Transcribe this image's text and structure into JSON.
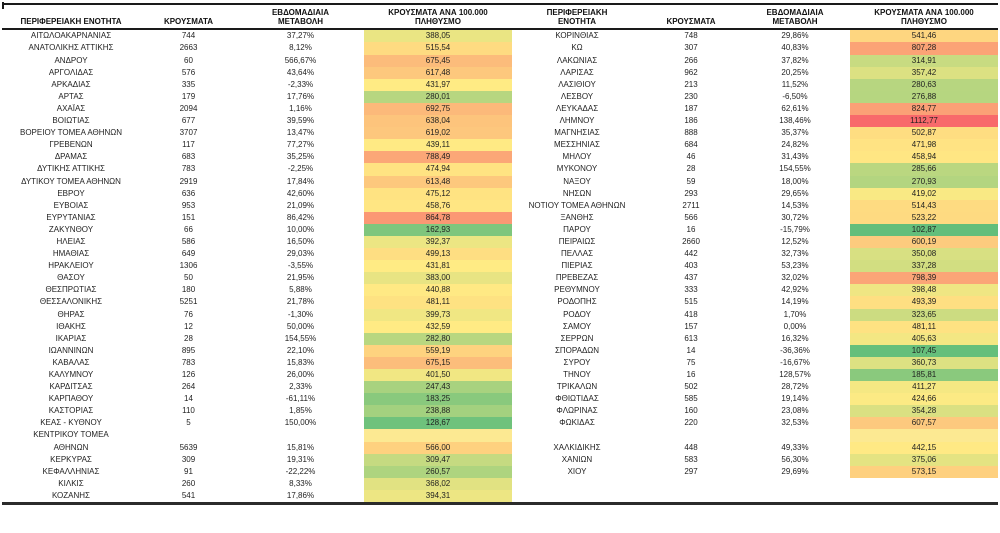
{
  "chart_data": {
    "type": "table",
    "columns": {
      "region": "ΠΕΡΙΦΕΡΕΙΑΚΗ ΕΝΟΤΗΤΑ",
      "cases": "ΚΡΟΥΣΜΑΤΑ",
      "weekly_change": "ΕΒΔΟΜΑΔΙΑΙΑ ΜΕΤΑΒΟΛΗ",
      "per_100k": "ΚΡΟΥΣΜΑΤΑ ΑΝΑ 100.000 ΠΛΗΘΥΣΜΟ"
    },
    "color_scale": {
      "applies_to": "per_100k",
      "min_color": "#63BE7B",
      "mid_color": "#FFEB84",
      "max_color": "#F8696B",
      "midpoint_rule": "50th-percentile",
      "empty_cell_fill": "#FCE992",
      "text_color": "#1f1f1f"
    },
    "tables": [
      {
        "rows": [
          [
            "ΑΙΤΩΛΟΑΚΑΡΝΑΝΙΑΣ",
            "744",
            "37,27%",
            "388,05"
          ],
          [
            "ΑΝΑΤΟΛΙΚΗΣ ΑΤΤΙΚΗΣ",
            "2663",
            "8,12%",
            "515,54"
          ],
          [
            "ΑΝΔΡΟΥ",
            "60",
            "566,67%",
            "675,45"
          ],
          [
            "ΑΡΓΟΛΙΔΑΣ",
            "576",
            "43,64%",
            "617,48"
          ],
          [
            "ΑΡΚΑΔΙΑΣ",
            "335",
            "-2,33%",
            "431,97"
          ],
          [
            "ΑΡΤΑΣ",
            "179",
            "17,76%",
            "280,01"
          ],
          [
            "ΑΧΑΪΑΣ",
            "2094",
            "1,16%",
            "692,75"
          ],
          [
            "ΒΟΙΩΤΙΑΣ",
            "677",
            "39,59%",
            "638,04"
          ],
          [
            "ΒΟΡΕΙΟΥ ΤΟΜΕΑ ΑΘΗΝΩΝ",
            "3707",
            "13,47%",
            "619,02"
          ],
          [
            "ΓΡΕΒΕΝΩΝ",
            "117",
            "77,27%",
            "439,11"
          ],
          [
            "ΔΡΑΜΑΣ",
            "683",
            "35,25%",
            "788,49"
          ],
          [
            "ΔΥΤΙΚΗΣ ΑΤΤΙΚΗΣ",
            "783",
            "-2,25%",
            "474,94"
          ],
          [
            "ΔΥΤΙΚΟΥ ΤΟΜΕΑ ΑΘΗΝΩΝ",
            "2919",
            "17,84%",
            "613,48"
          ],
          [
            "ΕΒΡΟΥ",
            "636",
            "42,60%",
            "475,12"
          ],
          [
            "ΕΥΒΟΙΑΣ",
            "953",
            "21,09%",
            "458,76"
          ],
          [
            "ΕΥΡΥΤΑΝΙΑΣ",
            "151",
            "86,42%",
            "864,78"
          ],
          [
            "ΖΑΚΥΝΘΟΥ",
            "66",
            "10,00%",
            "162,93"
          ],
          [
            "ΗΛΕΙΑΣ",
            "586",
            "16,50%",
            "392,37"
          ],
          [
            "ΗΜΑΘΙΑΣ",
            "649",
            "29,03%",
            "499,13"
          ],
          [
            "ΗΡΑΚΛΕΙΟΥ",
            "1306",
            "-3,55%",
            "431,81"
          ],
          [
            "ΘΑΣΟΥ",
            "50",
            "21,95%",
            "383,00"
          ],
          [
            "ΘΕΣΠΡΩΤΙΑΣ",
            "180",
            "5,88%",
            "440,88"
          ],
          [
            "ΘΕΣΣΑΛΟΝΙΚΗΣ",
            "5251",
            "21,78%",
            "481,11"
          ],
          [
            "ΘΗΡΑΣ",
            "76",
            "-1,30%",
            "399,73"
          ],
          [
            "ΙΘΑΚΗΣ",
            "12",
            "50,00%",
            "432,59"
          ],
          [
            "ΙΚΑΡΙΑΣ",
            "28",
            "154,55%",
            "282,80"
          ],
          [
            "ΙΩΑΝΝΙΝΩΝ",
            "895",
            "22,10%",
            "559,19"
          ],
          [
            "ΚΑΒΑΛΑΣ",
            "783",
            "15,83%",
            "675,15"
          ],
          [
            "ΚΑΛΥΜΝΟΥ",
            "126",
            "26,00%",
            "401,50"
          ],
          [
            "ΚΑΡΔΙΤΣΑΣ",
            "264",
            "2,33%",
            "247,43"
          ],
          [
            "ΚΑΡΠΑΘΟΥ",
            "14",
            "-61,11%",
            "183,25"
          ],
          [
            "ΚΑΣΤΟΡΙΑΣ",
            "110",
            "1,85%",
            "238,88"
          ],
          [
            "ΚΕΑΣ - ΚΥΘΝΟΥ",
            "5",
            "150,00%",
            "128,67"
          ],
          [
            "ΚΕΝΤΡΙΚΟΥ ΤΟΜΕΑ",
            "",
            "",
            "",
            true
          ],
          [
            "ΑΘΗΝΩΝ",
            "5639",
            "15,81%",
            "566,00"
          ],
          [
            "ΚΕΡΚΥΡΑΣ",
            "309",
            "19,31%",
            "309,47"
          ],
          [
            "ΚΕΦΑΛΛΗΝΙΑΣ",
            "91",
            "-22,22%",
            "260,57"
          ],
          [
            "ΚΙΛΚΙΣ",
            "260",
            "8,33%",
            "368,02"
          ],
          [
            "ΚΟΖΑΝΗΣ",
            "541",
            "17,86%",
            "394,31"
          ]
        ]
      },
      {
        "rows": [
          [
            "ΚΟΡΙΝΘΙΑΣ",
            "748",
            "29,86%",
            "541,46"
          ],
          [
            "ΚΩ",
            "307",
            "40,83%",
            "807,28"
          ],
          [
            "ΛΑΚΩΝΙΑΣ",
            "266",
            "37,82%",
            "314,91"
          ],
          [
            "ΛΑΡΙΣΑΣ",
            "962",
            "20,25%",
            "357,42"
          ],
          [
            "ΛΑΣΙΘΙΟΥ",
            "213",
            "11,52%",
            "280,63"
          ],
          [
            "ΛΕΣΒΟΥ",
            "230",
            "-6,50%",
            "276,88"
          ],
          [
            "ΛΕΥΚΑΔΑΣ",
            "187",
            "62,61%",
            "824,77"
          ],
          [
            "ΛΗΜΝΟΥ",
            "186",
            "138,46%",
            "1112,77"
          ],
          [
            "ΜΑΓΝΗΣΙΑΣ",
            "888",
            "35,37%",
            "502,87"
          ],
          [
            "ΜΕΣΣΗΝΙΑΣ",
            "684",
            "24,82%",
            "471,98"
          ],
          [
            "ΜΗΛΟΥ",
            "46",
            "31,43%",
            "458,94"
          ],
          [
            "ΜΥΚΟΝΟΥ",
            "28",
            "154,55%",
            "285,66"
          ],
          [
            "ΝΑΞΟΥ",
            "59",
            "18,00%",
            "270,93"
          ],
          [
            "ΝΗΣΩΝ",
            "293",
            "29,65%",
            "419,02"
          ],
          [
            "ΝΟΤΙΟΥ ΤΟΜΕΑ ΑΘΗΝΩΝ",
            "2711",
            "14,53%",
            "514,43"
          ],
          [
            "ΞΑΝΘΗΣ",
            "566",
            "30,72%",
            "523,22"
          ],
          [
            "ΠΑΡΟΥ",
            "16",
            "-15,79%",
            "102,87"
          ],
          [
            "ΠΕΙΡΑΙΩΣ",
            "2660",
            "12,52%",
            "600,19"
          ],
          [
            "ΠΕΛΛΑΣ",
            "442",
            "32,73%",
            "350,08"
          ],
          [
            "ΠΙΕΡΙΑΣ",
            "403",
            "53,23%",
            "337,28"
          ],
          [
            "ΠΡΕΒΕΖΑΣ",
            "437",
            "32,02%",
            "798,39"
          ],
          [
            "ΡΕΘΥΜΝΟΥ",
            "333",
            "42,92%",
            "398,48"
          ],
          [
            "ΡΟΔΟΠΗΣ",
            "515",
            "14,19%",
            "493,39"
          ],
          [
            "ΡΟΔΟΥ",
            "418",
            "1,70%",
            "323,65"
          ],
          [
            "ΣΑΜΟΥ",
            "157",
            "0,00%",
            "481,11"
          ],
          [
            "ΣΕΡΡΩΝ",
            "613",
            "16,32%",
            "405,63"
          ],
          [
            "ΣΠΟΡΑΔΩΝ",
            "14",
            "-36,36%",
            "107,45"
          ],
          [
            "ΣΥΡΟΥ",
            "75",
            "-16,67%",
            "360,73"
          ],
          [
            "ΤΗΝΟΥ",
            "16",
            "128,57%",
            "185,81"
          ],
          [
            "ΤΡΙΚΑΛΩΝ",
            "502",
            "28,72%",
            "411,27"
          ],
          [
            "ΦΘΙΩΤΙΔΑΣ",
            "585",
            "19,14%",
            "424,66"
          ],
          [
            "ΦΛΩΡΙΝΑΣ",
            "160",
            "23,08%",
            "354,28"
          ],
          [
            "ΦΩΚΙΔΑΣ",
            "220",
            "32,53%",
            "607,57"
          ],
          [
            "",
            "",
            "",
            "",
            true
          ],
          [
            "ΧΑΛΚΙΔΙΚΗΣ",
            "448",
            "49,33%",
            "442,15"
          ],
          [
            "ΧΑΝΙΩΝ",
            "583",
            "56,30%",
            "375,06"
          ],
          [
            "ΧΙΟΥ",
            "297",
            "29,69%",
            "573,15"
          ],
          [
            "",
            "",
            "",
            ""
          ],
          [
            "",
            "",
            "",
            ""
          ]
        ]
      }
    ]
  }
}
